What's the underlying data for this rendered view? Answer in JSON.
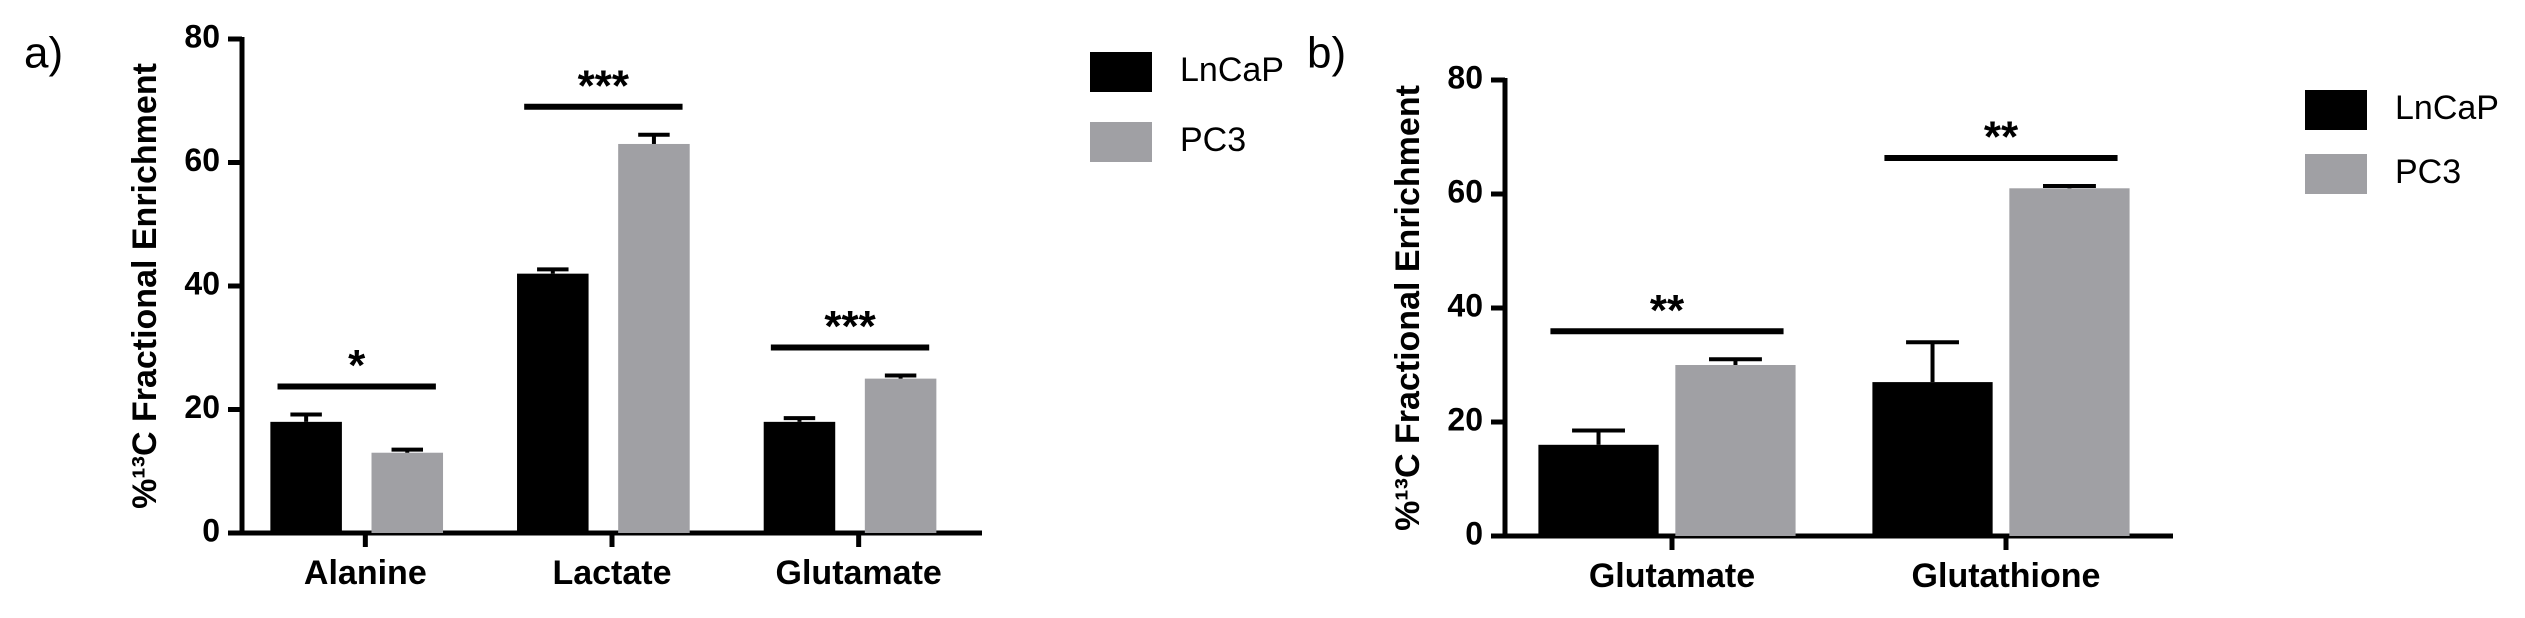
{
  "chart_data": [
    {
      "type": "bar",
      "panel_label": "a)",
      "ylabel": "%¹³C Fractional Enrichment",
      "categories": [
        "Alanine",
        "Lactate",
        "Glutamate"
      ],
      "series": [
        {
          "name": "LnCaP",
          "color": "#000000",
          "values": [
            18,
            42,
            18
          ],
          "errors": [
            1.2,
            0.7,
            0.6
          ]
        },
        {
          "name": "PC3",
          "color": "#a0a0a4",
          "values": [
            13,
            63,
            25
          ],
          "errors": [
            0.5,
            1.5,
            0.5
          ]
        }
      ],
      "significance": [
        "*",
        "***",
        "***"
      ],
      "ylim": [
        0,
        80
      ],
      "yticks": [
        0,
        20,
        40,
        60,
        80
      ],
      "grid": false
    },
    {
      "type": "bar",
      "panel_label": "b)",
      "ylabel": "%¹³C Fractional Enrichment",
      "categories": [
        "Glutamate",
        "Glutathione"
      ],
      "series": [
        {
          "name": "LnCaP",
          "color": "#000000",
          "values": [
            16,
            27
          ],
          "errors": [
            2.5,
            7
          ]
        },
        {
          "name": "PC3",
          "color": "#a0a0a4",
          "values": [
            30,
            61
          ],
          "errors": [
            1,
            0.4
          ]
        }
      ],
      "significance": [
        "**",
        "**"
      ],
      "ylim": [
        0,
        80
      ],
      "yticks": [
        0,
        20,
        40,
        60,
        80
      ],
      "grid": false
    }
  ]
}
